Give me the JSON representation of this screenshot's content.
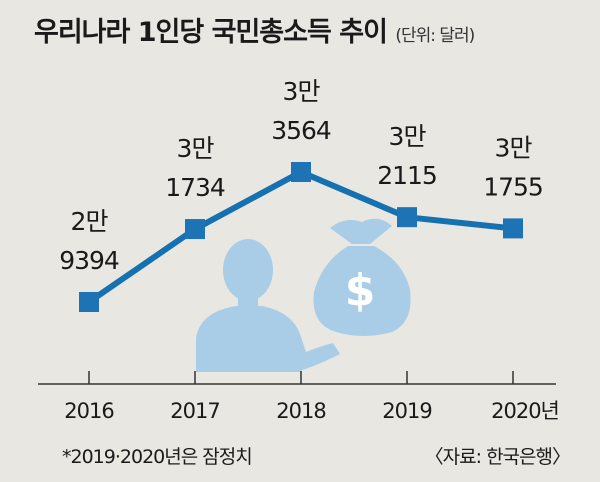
{
  "title": "우리나라 1인당 국민총소득 추이",
  "unit": "(단위: 달러)",
  "note": "*2019·2020년은 잠정치",
  "source": "〈자료: 한국은행〉",
  "icon": "businessman-with-dollar-money-bag-icon",
  "colors": {
    "line": "#1671b0",
    "marker": "#1e73b5",
    "illustration": "#a9cde6"
  },
  "chart_data": {
    "type": "line",
    "title": "우리나라 1인당 국민총소득 추이",
    "categories": [
      "2016",
      "2017",
      "2018",
      "2019",
      "2020년"
    ],
    "values": [
      29394,
      31734,
      33564,
      32115,
      31755
    ],
    "data_labels": [
      [
        "2만",
        "9394"
      ],
      [
        "3만",
        "1734"
      ],
      [
        "3만",
        "3564"
      ],
      [
        "3만",
        "2115"
      ],
      [
        "3만",
        "1755"
      ]
    ],
    "xlabel": "",
    "ylabel": "",
    "grid": false,
    "legend": "none"
  }
}
